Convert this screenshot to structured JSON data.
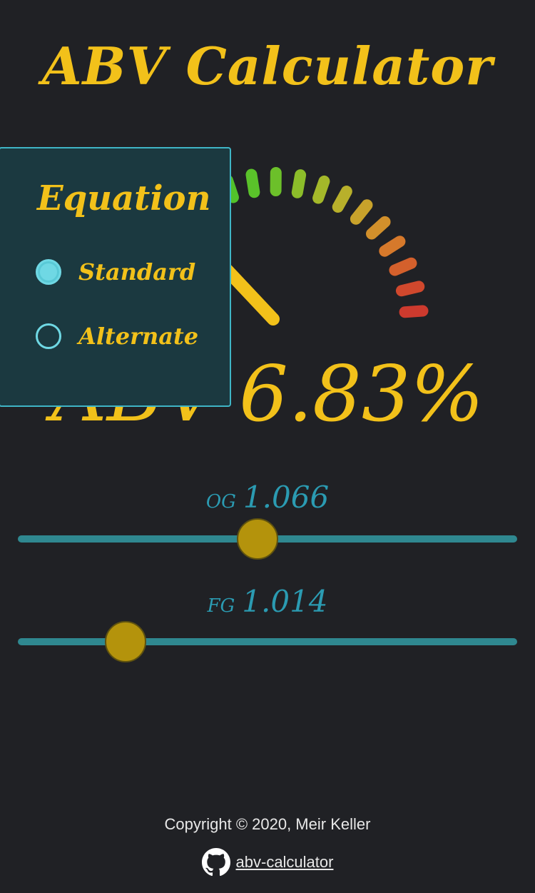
{
  "header": {
    "title": "ABV Calculator"
  },
  "gauge": {
    "value": 6.83,
    "tick_colors": [
      "#52c22a",
      "#52c22a",
      "#5ac22a",
      "#6cc02a",
      "#8cbd2a",
      "#a4b82a",
      "#b8b02b",
      "#c8a22b",
      "#d2902b",
      "#d6792b",
      "#d4602c",
      "#d0482d",
      "#cd3a2e"
    ],
    "needle_color": "#f2c11a"
  },
  "result": {
    "label": "ABV",
    "value": "6.83%"
  },
  "equation": {
    "title": "Equation",
    "options": [
      {
        "label": "Standard",
        "checked": true
      },
      {
        "label": "Alternate",
        "checked": false
      }
    ]
  },
  "sliders": {
    "og": {
      "name": "OG",
      "value": "1.066",
      "position": 0.48
    },
    "fg": {
      "name": "FG",
      "value": "1.014",
      "position": 0.215
    }
  },
  "footer": {
    "copyright": "Copyright © 2020, Meir Keller",
    "link_text": "abv-calculator",
    "icon": "github-icon"
  },
  "colors": {
    "background": "#202125",
    "accent": "#f2c11a",
    "panel": "#1b3940",
    "panel_border": "#3fb5c6",
    "slider_text": "#2b9bb2",
    "track": "#2f8890",
    "thumb": "#b4930c"
  }
}
